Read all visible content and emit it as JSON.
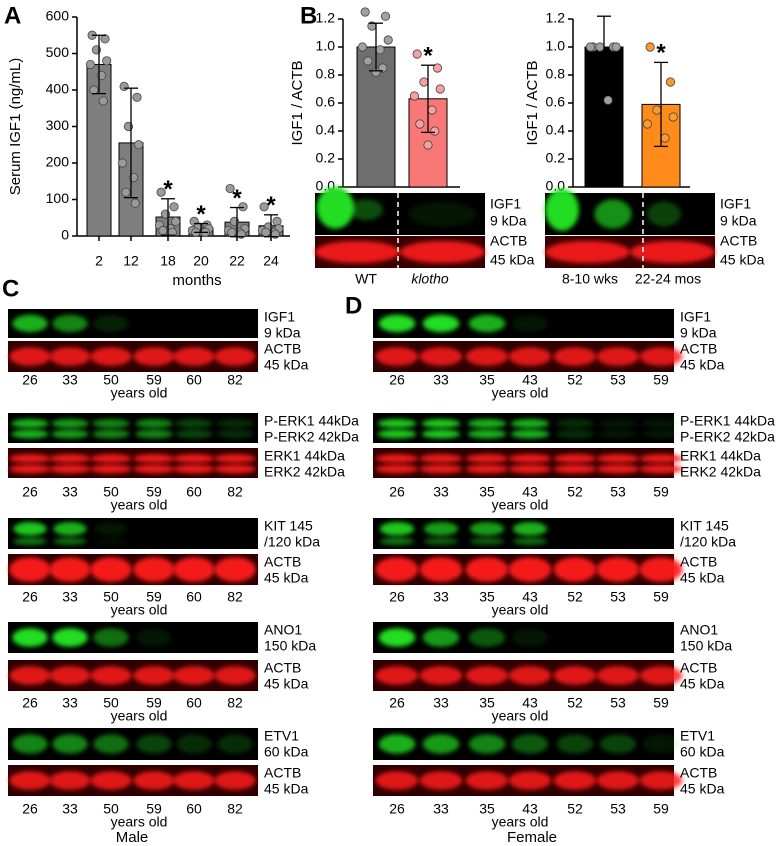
{
  "panel_labels": [
    "A",
    "B",
    "C",
    "D"
  ],
  "chart_data": [
    {
      "type": "bar",
      "ylabel": "Serum IGF1 (ng/mL)",
      "xlabel": "months",
      "categories": [
        "2",
        "12",
        "18",
        "20",
        "22",
        "24"
      ],
      "values": [
        470,
        255,
        52,
        22,
        38,
        28
      ],
      "errors": [
        80,
        150,
        50,
        12,
        40,
        30
      ],
      "points": [
        [
          550,
          540,
          510,
          480,
          470,
          440,
          400,
          370
        ],
        [
          410,
          380,
          300,
          250,
          200,
          160,
          120,
          90
        ],
        [
          120,
          80,
          60,
          40,
          30,
          20,
          15,
          10
        ],
        [
          40,
          30,
          25,
          20,
          15,
          10,
          10,
          10
        ],
        [
          130,
          80,
          40,
          20,
          15,
          10,
          10,
          5
        ],
        [
          80,
          40,
          25,
          20,
          15,
          10,
          10,
          5
        ]
      ],
      "annotations": [
        null,
        null,
        "*",
        "*",
        "*",
        "*"
      ],
      "colors": [
        "#7f7f7f",
        "#7f7f7f",
        "#7f7f7f",
        "#7f7f7f",
        "#7f7f7f",
        "#7f7f7f"
      ],
      "point_colors": [
        "#9a9a9a",
        "#9a9a9a",
        "#9a9a9a",
        "#9a9a9a",
        "#9a9a9a",
        "#9a9a9a"
      ],
      "ylim": [
        0,
        600
      ],
      "yticks": [
        0,
        100,
        200,
        300,
        400,
        500,
        600
      ]
    },
    {
      "type": "bar",
      "ylabel": "IGF1 / ACTB",
      "categories": [
        "WT",
        "klotho"
      ],
      "values": [
        1.0,
        0.63
      ],
      "errors": [
        0.17,
        0.24
      ],
      "points": [
        [
          1.25,
          1.22,
          1.15,
          1.05,
          1.0,
          0.98,
          0.9,
          0.85,
          0.82
        ],
        [
          0.95,
          0.85,
          0.75,
          0.7,
          0.65,
          0.55,
          0.45,
          0.4,
          0.3
        ]
      ],
      "annotations": [
        null,
        "*"
      ],
      "colors": [
        "#6e6e6e",
        "#f87878"
      ],
      "point_colors": [
        "#a0a0a0",
        "#f8a0a0"
      ],
      "ylim": [
        0,
        1.2
      ],
      "yticks": [
        {
          "value": 0,
          "label": "0.0"
        },
        0.2,
        0.4,
        0.6,
        0.8,
        {
          "value": 1,
          "label": "1.0"
        },
        1.2
      ]
    },
    {
      "type": "bar",
      "ylabel": "IGF1 / ACTB",
      "categories": [
        "8-10 wks",
        "22-24 mos"
      ],
      "values": [
        1.0,
        0.59
      ],
      "errors": [
        0.22,
        0.3
      ],
      "points": [
        [
          1.0,
          1.0,
          1.0,
          1.0,
          1.0,
          0.62
        ],
        [
          1.0,
          0.75,
          0.55,
          0.5,
          0.45,
          0.35
        ]
      ],
      "annotations": [
        null,
        "*"
      ],
      "colors": [
        "#000000",
        "#ff8c1a"
      ],
      "point_colors": [
        "#a0a0a0",
        "#ff9a33"
      ],
      "ylim": [
        0,
        1.2
      ],
      "yticks": [
        {
          "value": 0,
          "label": "0.0"
        },
        0.2,
        0.4,
        0.6,
        0.8,
        {
          "value": 1,
          "label": "1.0"
        },
        1.2
      ]
    }
  ],
  "panel_b_blots": [
    [
      [
        "IGF1",
        "9 kDa"
      ],
      [
        "ACTB",
        "45 kDa"
      ]
    ],
    [
      [
        "IGF1",
        "9 kDa"
      ],
      [
        "ACTB",
        "45 kDa"
      ]
    ]
  ],
  "panel_c": {
    "lanes": [
      "26",
      "33",
      "50",
      "59",
      "60",
      "82"
    ],
    "lanes_caption": "years old",
    "sex": "Male",
    "blots": [
      [
        [
          "IGF1",
          "9 kDa"
        ],
        [
          "ACTB",
          "45 kDa"
        ]
      ],
      [
        [
          "P-ERK1 44kDa",
          "P-ERK2 42kDa"
        ],
        [
          "ERK1 44kDa",
          "ERK2 42kDa"
        ]
      ],
      [
        [
          "KIT 145",
          "/120 kDa"
        ],
        [
          "ACTB",
          "45 kDa"
        ]
      ],
      [
        [
          "ANO1",
          "150 kDa"
        ],
        [
          "ACTB",
          "45 kDa"
        ]
      ],
      [
        [
          "ETV1",
          "60 kDa"
        ],
        [
          "ACTB",
          "45 kDa"
        ]
      ]
    ]
  },
  "panel_d": {
    "lanes": [
      "26",
      "33",
      "35",
      "43",
      "52",
      "53",
      "59"
    ],
    "lanes_caption": "years old",
    "sex": "Female",
    "blots": [
      [
        [
          "IGF1",
          "9 kDa"
        ],
        [
          "ACTB",
          "45 kDa"
        ]
      ],
      [
        [
          "P-ERK1 44kDa",
          "P-ERK2 42kDa"
        ],
        [
          "ERK1 44kDa",
          "ERK2 42kDa"
        ]
      ],
      [
        [
          "KIT 145",
          "/120 kDa"
        ],
        [
          "ACTB",
          "45 kDa"
        ]
      ],
      [
        [
          "ANO1",
          "150 kDa"
        ],
        [
          "ACTB",
          "45 kDa"
        ]
      ],
      [
        [
          "ETV1",
          "60 kDa"
        ],
        [
          "ACTB",
          "45 kDa"
        ]
      ]
    ]
  }
}
